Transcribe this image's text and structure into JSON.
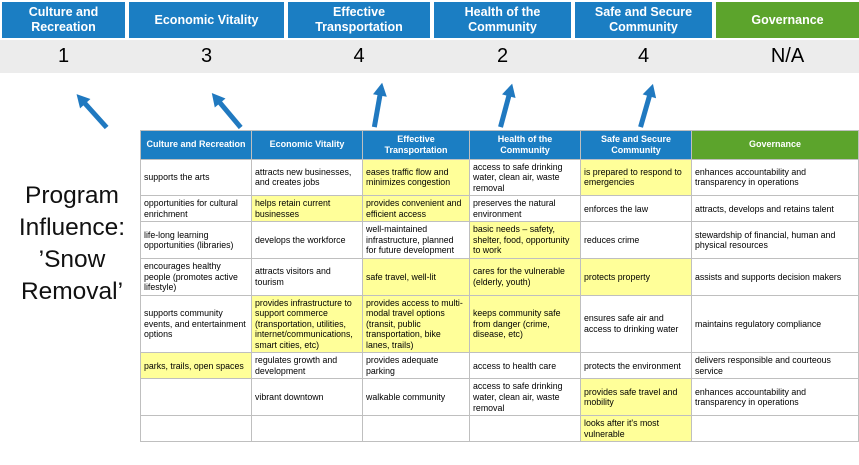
{
  "title": "Program Influence: ’Snow Removal’",
  "colors": {
    "header_blue": "#1B7EC3",
    "header_green": "#5CA42C",
    "highlight_yellow": "#FFFF99",
    "score_band_gray": "#ECECEC",
    "arrow_blue": "#2079C0"
  },
  "summary": {
    "columns": [
      {
        "label": "Culture and Recreation",
        "score": "1",
        "color": "blue",
        "has_arrow": true
      },
      {
        "label": "Economic Vitality",
        "score": "3",
        "color": "blue",
        "has_arrow": true
      },
      {
        "label": "Effective Transportation",
        "score": "4",
        "color": "blue",
        "has_arrow": true
      },
      {
        "label": "Health of the Community",
        "score": "2",
        "color": "blue",
        "has_arrow": true
      },
      {
        "label": "Safe and Secure Community",
        "score": "4",
        "color": "blue",
        "has_arrow": true
      },
      {
        "label": "Governance",
        "score": "N/A",
        "color": "green",
        "has_arrow": false
      }
    ]
  },
  "matrix": {
    "headers": [
      "Culture and Recreation",
      "Economic Vitality",
      "Effective Transportation",
      "Health of the Community",
      "Safe and Secure Community",
      "Governance"
    ],
    "rows": [
      [
        {
          "text": "supports the arts",
          "hl": false
        },
        {
          "text": "attracts new businesses, and creates jobs",
          "hl": false
        },
        {
          "text": "eases traffic flow and minimizes congestion",
          "hl": true
        },
        {
          "text": "access to safe drinking water, clean air, waste removal",
          "hl": false
        },
        {
          "text": "is prepared to respond to emergencies",
          "hl": true
        },
        {
          "text": "enhances accountability and transparency in operations",
          "hl": false
        }
      ],
      [
        {
          "text": "opportunities for cultural enrichment",
          "hl": false
        },
        {
          "text": "helps retain current businesses",
          "hl": true
        },
        {
          "text": "provides convenient and efficient access",
          "hl": true
        },
        {
          "text": "preserves the natural environment",
          "hl": false
        },
        {
          "text": "enforces the law",
          "hl": false
        },
        {
          "text": "attracts, develops and retains talent",
          "hl": false
        }
      ],
      [
        {
          "text": "life-long learning opportunities (libraries)",
          "hl": false
        },
        {
          "text": "develops the workforce",
          "hl": false
        },
        {
          "text": "well-maintained infrastructure, planned for future development",
          "hl": false
        },
        {
          "text": "basic needs – safety, shelter, food, opportunity to work",
          "hl": true
        },
        {
          "text": "reduces crime",
          "hl": false
        },
        {
          "text": "stewardship of financial, human and physical resources",
          "hl": false
        }
      ],
      [
        {
          "text": "encourages healthy people (promotes active lifestyle)",
          "hl": false
        },
        {
          "text": "attracts visitors and tourism",
          "hl": false
        },
        {
          "text": "safe travel, well-lit",
          "hl": true
        },
        {
          "text": "cares for the vulnerable (elderly, youth)",
          "hl": true
        },
        {
          "text": "protects property",
          "hl": true
        },
        {
          "text": "assists and supports decision makers",
          "hl": false
        }
      ],
      [
        {
          "text": "supports community events, and entertainment options",
          "hl": false
        },
        {
          "text": "provides infrastructure to support commerce (transportation, utilities, internet/communications, smart cities, etc)",
          "hl": true
        },
        {
          "text": "provides access to multi-modal travel options (transit, public transportation, bike lanes, trails)",
          "hl": true
        },
        {
          "text": "keeps community safe from danger (crime, disease, etc)",
          "hl": true
        },
        {
          "text": "ensures safe air and access to drinking water",
          "hl": false
        },
        {
          "text": "maintains regulatory compliance",
          "hl": false
        }
      ],
      [
        {
          "text": "parks, trails, open spaces",
          "hl": true
        },
        {
          "text": "regulates growth and development",
          "hl": false
        },
        {
          "text": "provides adequate parking",
          "hl": false
        },
        {
          "text": "access to health care",
          "hl": false
        },
        {
          "text": "protects the environment",
          "hl": false
        },
        {
          "text": "delivers responsible and courteous service",
          "hl": false
        }
      ],
      [
        {
          "text": "",
          "hl": false
        },
        {
          "text": "vibrant downtown",
          "hl": false
        },
        {
          "text": "walkable community",
          "hl": false
        },
        {
          "text": "access to safe drinking water, clean air, waste removal",
          "hl": false
        },
        {
          "text": "provides safe travel and mobility",
          "hl": true
        },
        {
          "text": "enhances accountability and transparency in operations",
          "hl": false
        }
      ],
      [
        {
          "text": "",
          "hl": false
        },
        {
          "text": "",
          "hl": false
        },
        {
          "text": "",
          "hl": false
        },
        {
          "text": "",
          "hl": false
        },
        {
          "text": "looks after it's most vulnerable",
          "hl": true
        },
        {
          "text": "",
          "hl": false
        }
      ]
    ]
  }
}
